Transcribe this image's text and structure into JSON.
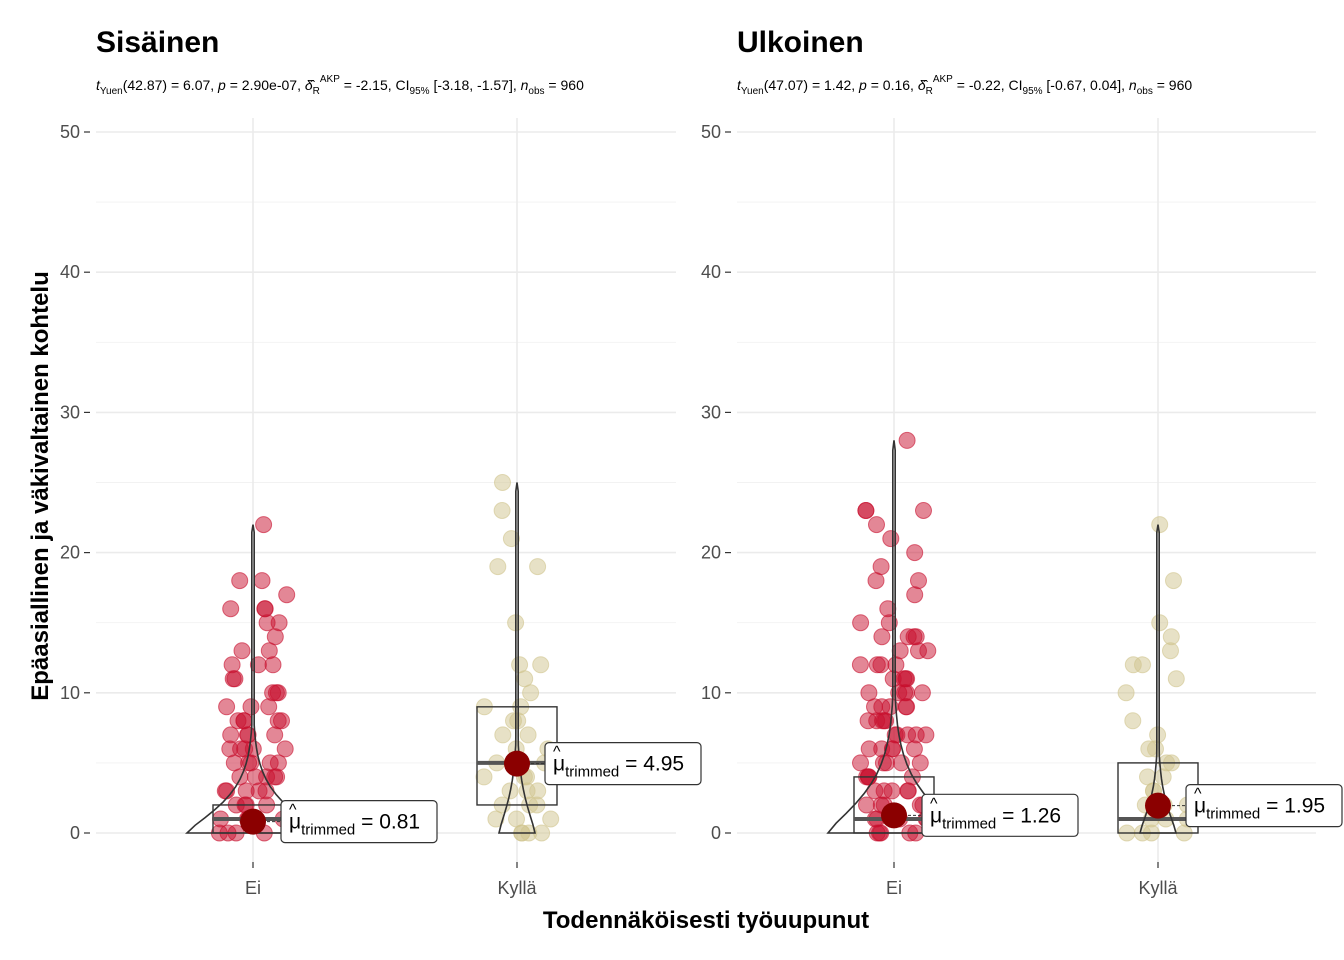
{
  "y_axis_title": "Epäasiallinen ja väkivaltainen kohtelu",
  "x_axis_title": "Todennäköisesti työuupunut",
  "colors": {
    "Ei": "#c8102e",
    "Kyllä": "#d0c48e",
    "mean_dot": "#8b0000"
  },
  "chart_data": [
    {
      "type": "scatter",
      "title": "Sisäinen",
      "subtitle": {
        "t_label": "t",
        "t_sub": "Yuen",
        "t_value": "(42.87) = 6.07, ",
        "p_label": "p",
        "p_value": " = 2.90e-07, ",
        "delta_sub": "R",
        "delta_sup": "AKP",
        "delta_value": " = -2.15, CI",
        "ci_sub": "95%",
        "ci_value": " [-3.18, -1.57], ",
        "n_label": "n",
        "n_sub": "obs",
        "n_value": " = 960"
      },
      "categories": [
        "Ei",
        "Kyllä"
      ],
      "y_ticks": [
        "0",
        "10",
        "20",
        "30",
        "40",
        "50"
      ],
      "ylim": [
        0,
        50
      ],
      "box": [
        {
          "group": "Ei",
          "q1": 0,
          "median": 1,
          "q3": 2
        },
        {
          "group": "Kyllä",
          "q1": 2,
          "median": 5,
          "q3": 9
        }
      ],
      "points": [
        {
          "group": "Ei",
          "values": [
            22,
            18,
            18,
            17,
            16,
            16,
            16,
            15,
            15,
            14,
            13,
            13,
            12,
            12,
            12,
            11,
            11,
            10,
            10,
            10,
            9,
            9,
            9,
            8,
            8,
            8,
            8,
            8,
            7,
            7,
            7,
            7,
            6,
            6,
            6,
            6,
            6,
            5,
            5,
            5,
            5,
            5,
            4,
            4,
            4,
            4,
            4,
            3,
            3,
            3,
            3,
            3,
            2,
            2,
            2,
            2,
            1,
            1,
            1,
            1,
            0,
            0,
            0,
            0
          ]
        },
        {
          "group": "Kyllä",
          "values": [
            25,
            23,
            21,
            19,
            19,
            15,
            12,
            12,
            11,
            10,
            9,
            9,
            8,
            8,
            7,
            7,
            6,
            6,
            5,
            5,
            5,
            4,
            4,
            4,
            3,
            3,
            3,
            2,
            2,
            2,
            1,
            1,
            1,
            0,
            0,
            0,
            0
          ]
        }
      ],
      "trimmed_means": [
        {
          "group": "Ei",
          "value": 0.81,
          "label_value": "= 0.81"
        },
        {
          "group": "Kyllä",
          "value": 4.95,
          "label_value": "= 4.95"
        }
      ],
      "label_symbol": "μ",
      "label_sub": "trimmed"
    },
    {
      "type": "scatter",
      "title": "Ulkoinen",
      "subtitle": {
        "t_label": "t",
        "t_sub": "Yuen",
        "t_value": "(47.07) = 1.42, ",
        "p_label": "p",
        "p_value": " = 0.16, ",
        "delta_sub": "R",
        "delta_sup": "AKP",
        "delta_value": " = -0.22, CI",
        "ci_sub": "95%",
        "ci_value": " [-0.67, 0.04], ",
        "n_label": "n",
        "n_sub": "obs",
        "n_value": " = 960"
      },
      "categories": [
        "Ei",
        "Kyllä"
      ],
      "y_ticks": [
        "0",
        "10",
        "20",
        "30",
        "40",
        "50"
      ],
      "ylim": [
        0,
        50
      ],
      "box": [
        {
          "group": "Ei",
          "q1": 0,
          "median": 1,
          "q3": 4
        },
        {
          "group": "Kyllä",
          "q1": 0,
          "median": 1,
          "q3": 5
        }
      ],
      "points": [
        {
          "group": "Ei",
          "values": [
            28,
            23,
            23,
            23,
            22,
            21,
            20,
            19,
            18,
            18,
            17,
            16,
            15,
            15,
            14,
            14,
            14,
            14,
            13,
            13,
            13,
            12,
            12,
            12,
            12,
            11,
            11,
            11,
            11,
            10,
            10,
            10,
            10,
            10,
            9,
            9,
            9,
            9,
            9,
            8,
            8,
            8,
            8,
            8,
            7,
            7,
            7,
            7,
            7,
            6,
            6,
            6,
            6,
            6,
            5,
            5,
            5,
            5,
            5,
            4,
            4,
            4,
            4,
            4,
            3,
            3,
            3,
            3,
            3,
            2,
            2,
            2,
            2,
            2,
            1,
            1,
            1,
            1,
            1,
            0,
            0,
            0,
            0,
            0
          ]
        },
        {
          "group": "Kyllä",
          "values": [
            22,
            18,
            15,
            14,
            13,
            12,
            12,
            11,
            10,
            8,
            7,
            6,
            6,
            5,
            5,
            4,
            4,
            3,
            3,
            2,
            2,
            2,
            1,
            1,
            1,
            0,
            0,
            0,
            0
          ]
        }
      ],
      "trimmed_means": [
        {
          "group": "Ei",
          "value": 1.26,
          "label_value": "= 1.26"
        },
        {
          "group": "Kyllä",
          "value": 1.95,
          "label_value": "= 1.95"
        }
      ],
      "label_symbol": "μ",
      "label_sub": "trimmed"
    }
  ]
}
